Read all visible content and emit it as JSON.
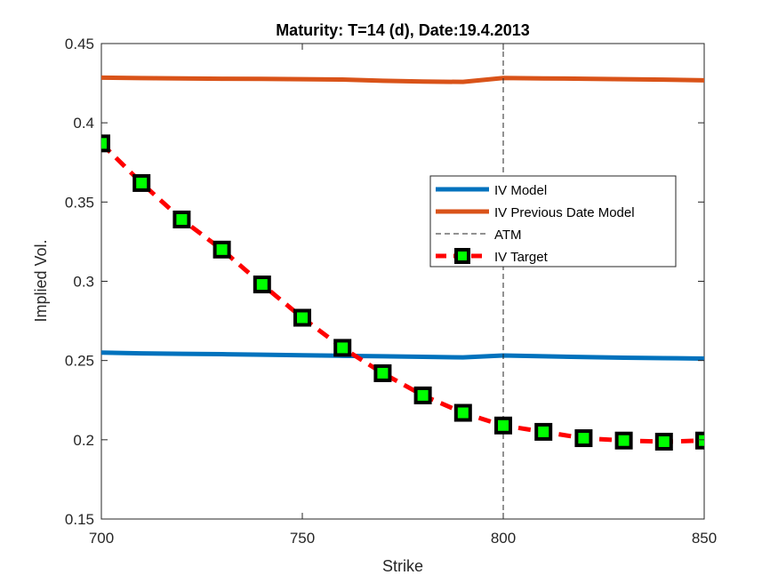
{
  "chart_data": {
    "type": "line",
    "title": "Maturity: T=14 (d), Date:19.4.2013",
    "xlabel": "Strike",
    "ylabel": "Implied Vol.",
    "xlim": [
      700,
      850
    ],
    "ylim": [
      0.15,
      0.45
    ],
    "xticks": [
      "700",
      "750",
      "800",
      "850"
    ],
    "yticks": [
      "0.15",
      "0.2",
      "0.25",
      "0.3",
      "0.35",
      "0.4",
      "0.45"
    ],
    "grid": false,
    "legend_position": "right",
    "atm_strike": 800,
    "series": [
      {
        "name": "IV Model",
        "color": "#0072BD",
        "style": "solid",
        "x": [
          700,
          710,
          720,
          730,
          740,
          750,
          760,
          770,
          780,
          790,
          800,
          810,
          820,
          830,
          840,
          850
        ],
        "values": [
          0.255,
          0.2545,
          0.2542,
          0.254,
          0.2537,
          0.2533,
          0.253,
          0.2527,
          0.2523,
          0.252,
          0.2532,
          0.2527,
          0.2522,
          0.2518,
          0.2515,
          0.2512
        ]
      },
      {
        "name": "IV Previous Date Model",
        "color": "#D95319",
        "style": "solid",
        "x": [
          700,
          710,
          720,
          730,
          740,
          750,
          760,
          770,
          780,
          790,
          800,
          810,
          820,
          830,
          840,
          850
        ],
        "values": [
          0.4285,
          0.4282,
          0.428,
          0.4278,
          0.4277,
          0.4275,
          0.4273,
          0.4265,
          0.426,
          0.4258,
          0.4283,
          0.428,
          0.4278,
          0.4275,
          0.4272,
          0.4268
        ]
      },
      {
        "name": "ATM",
        "color": "#262626",
        "style": "dashed-vertical",
        "x": [
          800,
          800
        ],
        "values": [
          0.15,
          0.45
        ]
      },
      {
        "name": "IV Target",
        "color": "#FF0000",
        "marker_face": "#00FF00",
        "marker_edge": "#000000",
        "style": "dashed-square-markers",
        "x": [
          700,
          710,
          720,
          730,
          740,
          750,
          760,
          770,
          780,
          790,
          800,
          810,
          820,
          830,
          840,
          850
        ],
        "values": [
          0.387,
          0.362,
          0.339,
          0.32,
          0.298,
          0.277,
          0.258,
          0.242,
          0.228,
          0.217,
          0.209,
          0.205,
          0.201,
          0.1995,
          0.1988,
          0.1995
        ]
      }
    ]
  }
}
